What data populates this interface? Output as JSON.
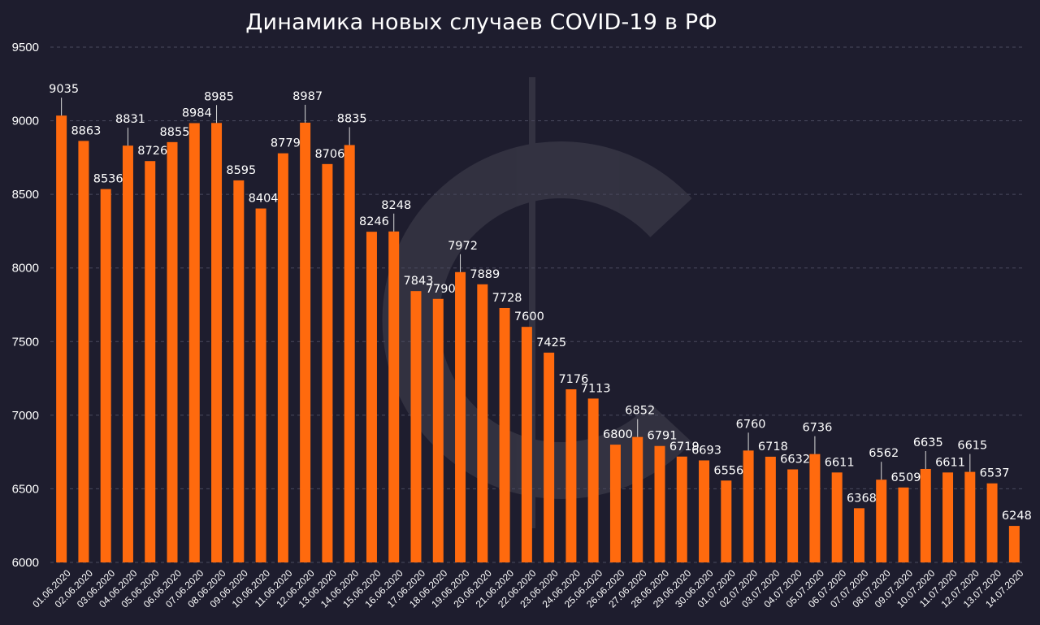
{
  "chart_data": {
    "type": "bar",
    "title": "Динамика новых случаев COVID-19 в РФ",
    "ylim": [
      6000,
      9500
    ],
    "yticks": [
      6000,
      6500,
      7000,
      7500,
      8000,
      8500,
      9000,
      9500
    ],
    "grid": true,
    "bar_color": "#ff6a0e",
    "background_color": "#1e1d2e",
    "categories": [
      "01.06.2020",
      "02.06.2020",
      "03.06.2020",
      "04.06.2020",
      "05.06.2020",
      "06.06.2020",
      "07.06.2020",
      "08.06.2020",
      "09.06.2020",
      "10.06.2020",
      "11.06.2020",
      "12.06.2020",
      "13.06.2020",
      "14.06.2020",
      "15.06.2020",
      "16.06.2020",
      "17.06.2020",
      "18.06.2020",
      "19.06.2020",
      "20.06.2020",
      "21.06.2020",
      "22.06.2020",
      "23.06.2020",
      "24.06.2020",
      "25.06.2020",
      "26.06.2020",
      "27.06.2020",
      "28.06.2020",
      "29.06.2020",
      "30.06.2020",
      "01.07.2020",
      "02.07.2020",
      "03.07.2020",
      "04.07.2020",
      "05.07.2020",
      "06.07.2020",
      "07.07.2020",
      "08.07.2020",
      "09.07.2020",
      "10.07.2020",
      "11.07.2020",
      "12.07.2020",
      "13.07.2020",
      "14.07.2020"
    ],
    "values": [
      9035,
      8863,
      8536,
      8831,
      8726,
      8855,
      8984,
      8985,
      8595,
      8404,
      8779,
      8987,
      8706,
      8835,
      8246,
      8248,
      7843,
      7790,
      7972,
      7889,
      7728,
      7600,
      7425,
      7176,
      7113,
      6800,
      6852,
      6791,
      6719,
      6693,
      6556,
      6760,
      6718,
      6632,
      6736,
      6611,
      6368,
      6562,
      6509,
      6635,
      6611,
      6615,
      6537,
      6248
    ]
  }
}
